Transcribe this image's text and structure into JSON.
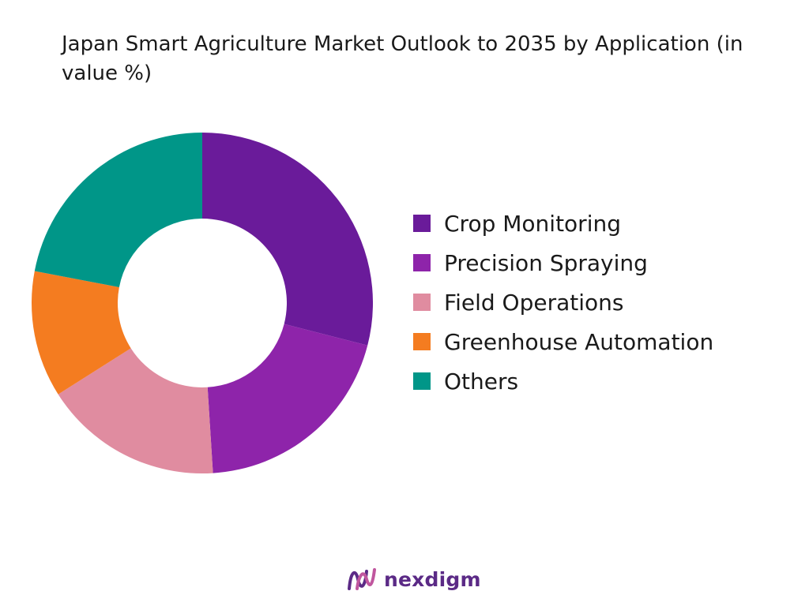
{
  "chart_data": {
    "type": "pie",
    "title": "Japan Smart Agriculture Market Outlook to 2035 by Application (in value %)",
    "donut": true,
    "legend_position": "right",
    "categories": [
      "Crop Monitoring",
      "Precision Spraying",
      "Field Operations",
      "Greenhouse Automation",
      "Others"
    ],
    "values": [
      29,
      20,
      17,
      12,
      22
    ],
    "colors": [
      "#6a1b9a",
      "#8e24aa",
      "#e08ca0",
      "#f47c20",
      "#009688"
    ]
  },
  "brand": {
    "name": "nexdigm",
    "mark_colors": [
      "#5b2a86",
      "#c0569e"
    ]
  }
}
